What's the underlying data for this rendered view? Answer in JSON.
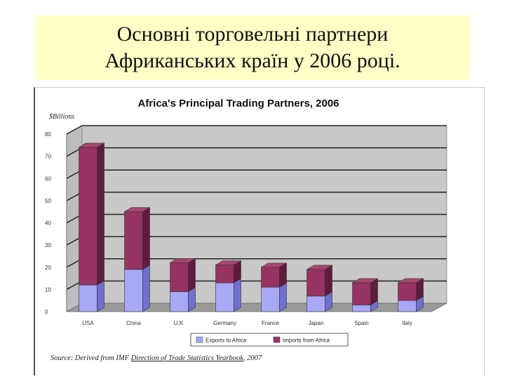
{
  "slide": {
    "title_line1": "Основні торговельні партнери",
    "title_line2": "Африканських країн у 2006 році."
  },
  "source": {
    "prefix": "Source: Derived from IMF ",
    "publication": "Direction of Trade Statistics Yearbook",
    "suffix": ", 2007"
  },
  "colors": {
    "exports": "#a8a8f6",
    "exports_side": "#7070cf",
    "exports_top": "#c6c6fb",
    "imports": "#963362",
    "imports_side": "#5f1c3c",
    "imports_top": "#a8466f",
    "plot_back": "#c8c8c8",
    "floor": "#9a9a9a",
    "grid": "#222222"
  },
  "chart_data": {
    "type": "bar",
    "stacked": true,
    "three_d": true,
    "title": "Africa's Principal Trading Partners, 2006",
    "ylabel": "$Billions",
    "xlabel": "",
    "ylim": [
      0,
      80
    ],
    "yticks": [
      0,
      10,
      20,
      30,
      40,
      50,
      60,
      70,
      80
    ],
    "grid": true,
    "legend_position": "bottom",
    "categories": [
      "USA",
      "China",
      "U.K.",
      "Germany",
      "France",
      "Japan",
      "Spain",
      "Italy"
    ],
    "series": [
      {
        "name": "Exports to Africa",
        "values": [
          12,
          19,
          9,
          13,
          11,
          7,
          3,
          5
        ]
      },
      {
        "name": "Imports from Africa",
        "values": [
          62,
          26,
          13,
          8,
          9,
          12,
          10,
          8
        ]
      }
    ]
  }
}
